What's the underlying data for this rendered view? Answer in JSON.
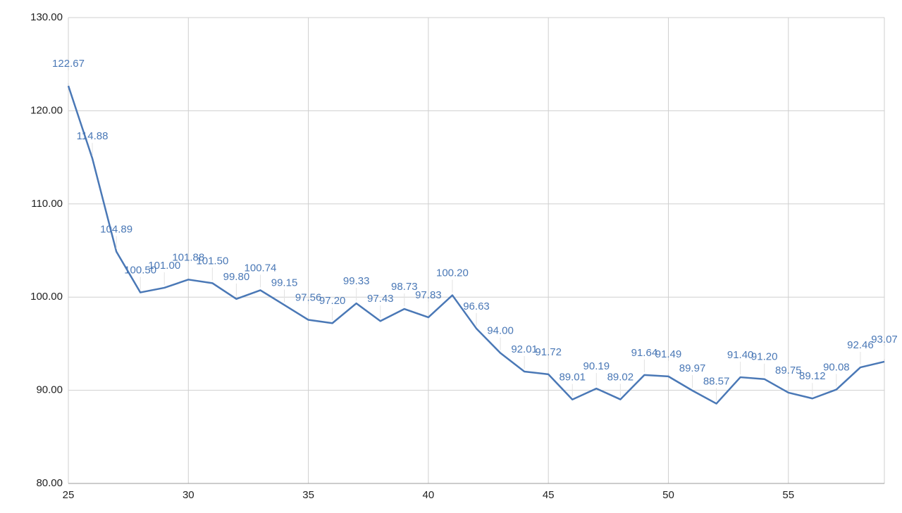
{
  "chart_data": {
    "type": "line",
    "x": [
      25,
      26,
      27,
      28,
      29,
      30,
      31,
      32,
      33,
      34,
      35,
      36,
      37,
      38,
      39,
      40,
      41,
      42,
      43,
      44,
      45,
      46,
      47,
      48,
      49,
      50,
      51,
      52,
      53,
      54,
      55,
      56,
      57,
      58,
      59
    ],
    "series": [
      {
        "color": "#4a78b6",
        "values": [
          122.67,
          114.88,
          104.89,
          100.5,
          101.0,
          101.88,
          101.5,
          99.8,
          100.74,
          99.15,
          97.56,
          97.2,
          99.33,
          97.43,
          98.73,
          97.83,
          100.2,
          96.63,
          94.0,
          92.01,
          91.72,
          89.01,
          90.19,
          89.02,
          91.64,
          91.49,
          89.97,
          88.57,
          91.4,
          91.2,
          89.75,
          89.12,
          90.08,
          92.46,
          93.07
        ],
        "value_labels": [
          "122.67",
          "114.88",
          "104.89",
          "100.50",
          "101.00",
          "101.88",
          "101.50",
          "99.80",
          "100.74",
          "99.15",
          "97.56",
          "97.20",
          "99.33",
          "97.43",
          "98.73",
          "97.83",
          "100.20",
          "96.63",
          "94.00",
          "92.01",
          "91.72",
          "89.01",
          "90.19",
          "89.02",
          "91.64",
          "91.49",
          "89.97",
          "88.57",
          "91.40",
          "91.20",
          "89.75",
          "89.12",
          "90.08",
          "92.46",
          "93.07"
        ]
      }
    ],
    "xlim": [
      25,
      59
    ],
    "xticks": [
      25,
      30,
      35,
      40,
      45,
      50,
      55
    ],
    "ylim": [
      80,
      130
    ],
    "yticks": [
      {
        "value": 80,
        "label": "80.00"
      },
      {
        "value": 90,
        "label": "90.00"
      },
      {
        "value": 100,
        "label": "100.00"
      },
      {
        "value": 110,
        "label": "110.00"
      },
      {
        "value": 120,
        "label": "120.00"
      },
      {
        "value": 130,
        "label": "130.00"
      }
    ],
    "grid": true
  }
}
